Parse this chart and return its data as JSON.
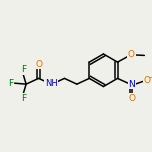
{
  "bg_color": "#f0f0ea",
  "bond_color": "#000000",
  "atom_colors": {
    "O": "#e07000",
    "N": "#0000cc",
    "F": "#007700",
    "C": "#000000",
    "H": "#000000"
  },
  "figsize": [
    1.52,
    1.52
  ],
  "dpi": 100,
  "lw": 1.1
}
